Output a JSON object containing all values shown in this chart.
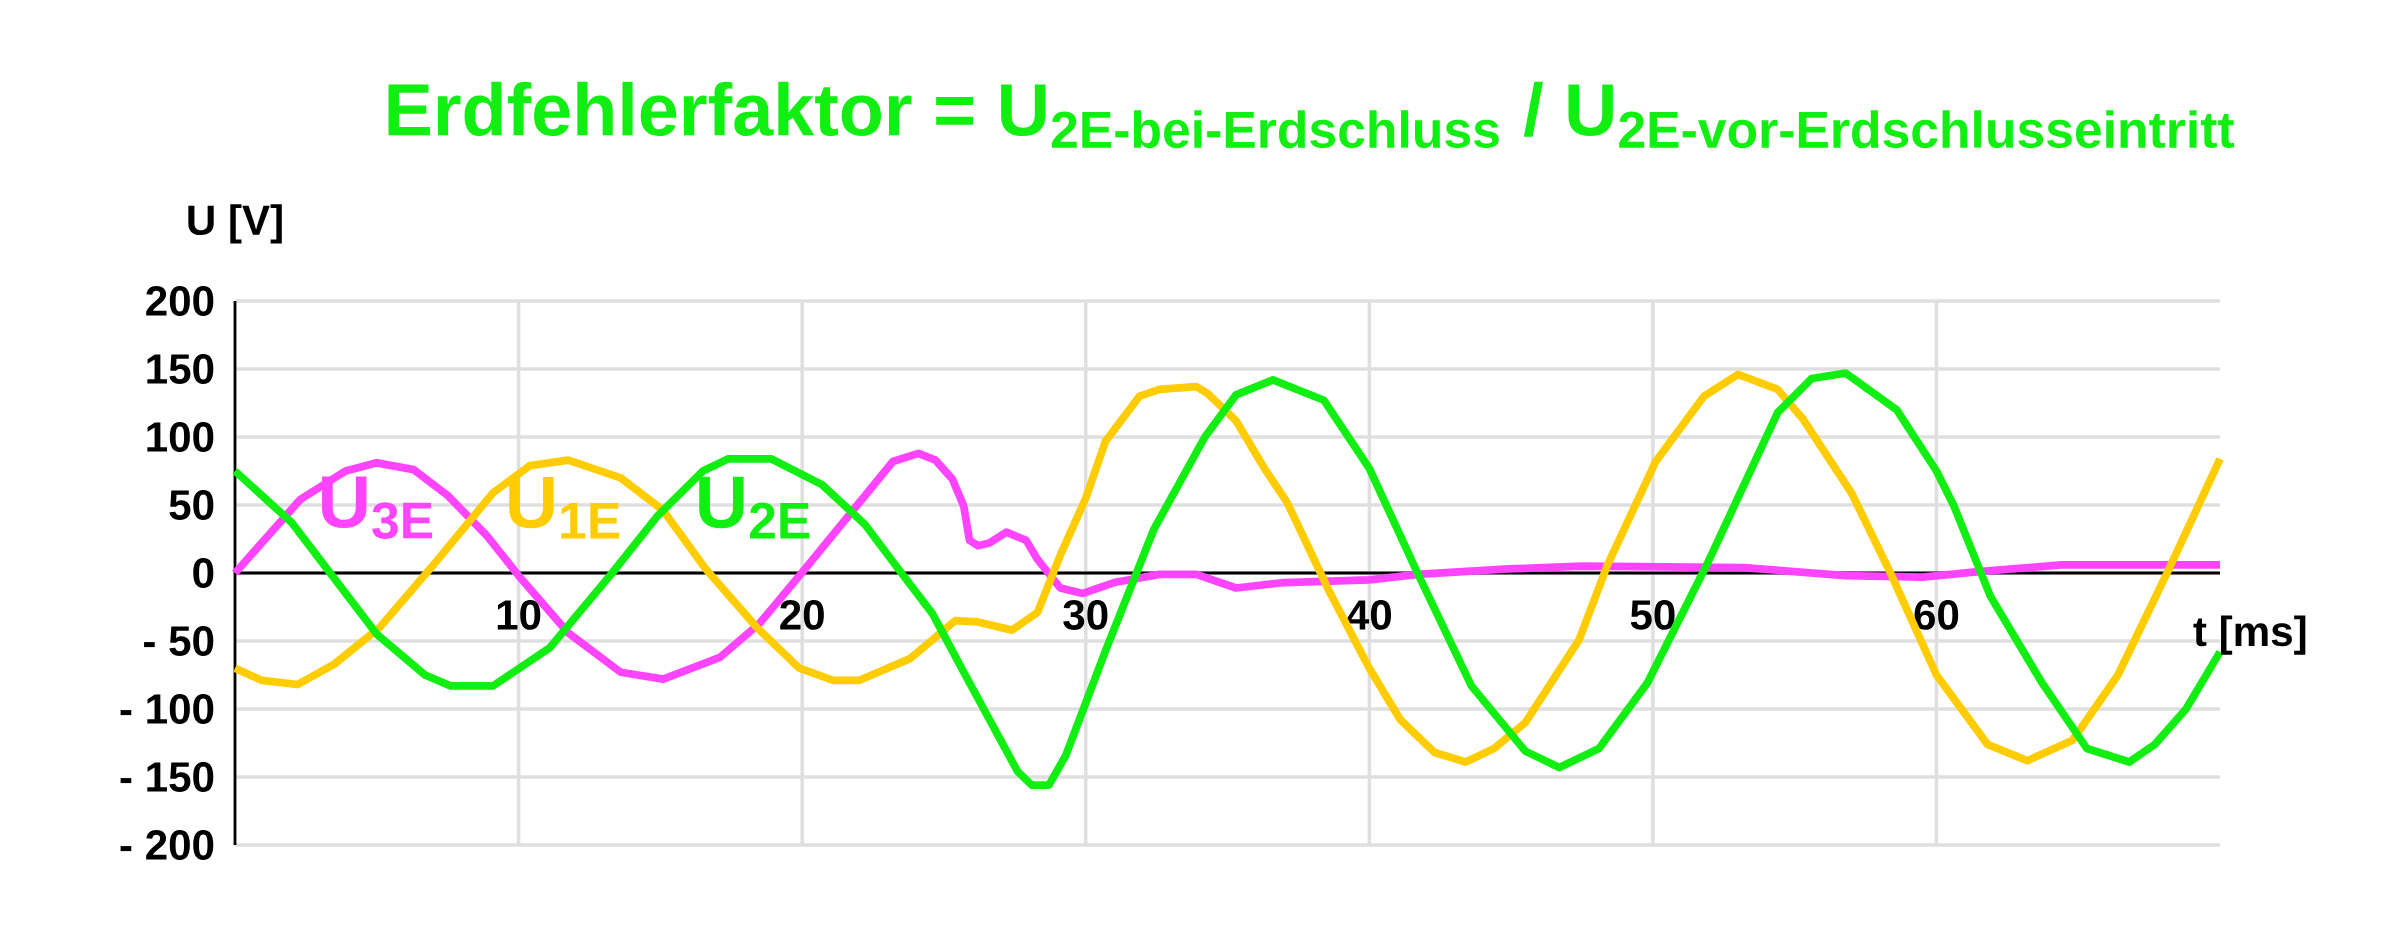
{
  "chart_data": {
    "type": "line",
    "title": "\\text{Erdfehlerfaktor = U}_{\\text{2E-bei-Erdschluss}}\\text{ / U}_{\\text{2E-vor-Erdschlusseintritt}}",
    "xlabel": "t [ms]",
    "ylabel": "U [V]",
    "xlim": [
      0,
      70
    ],
    "ylim": [
      -200,
      200
    ],
    "xticks": [
      10,
      20,
      30,
      40,
      50,
      60
    ],
    "yticks": [
      200,
      150,
      100,
      50,
      0,
      {
        "value": -50,
        "label": "- 50"
      },
      {
        "value": -100,
        "label": "- 100"
      },
      {
        "value": -150,
        "label": "- 150"
      },
      {
        "value": -200,
        "label": "- 200"
      }
    ],
    "grid": true,
    "legend": false,
    "marker": "none",
    "line_style": "solid",
    "series": [
      {
        "name": "U$_{3E}$",
        "color": "#ff44ff",
        "x": [
          0,
          2.3,
          3.9,
          5,
          6.3,
          7.5,
          8.9,
          10,
          11.75,
          13.6,
          15.1,
          17.1,
          18.5,
          20.1,
          22.3,
          23.2,
          24.1,
          24.7,
          25.3,
          25.7,
          25.9,
          26.2,
          26.6,
          27.2,
          27.9,
          28.3,
          29.1,
          29.9,
          31,
          32.6,
          33.9,
          35.3,
          37,
          40,
          41.7,
          44.9,
          47.5,
          53.2,
          56.8,
          59.5,
          61.5,
          64.4,
          70
        ],
        "values": [
          0,
          54,
          75,
          81,
          76,
          57,
          27,
          -2,
          -44,
          -73,
          -78,
          -62,
          -37,
          3,
          59,
          82,
          88,
          83,
          69,
          49,
          24,
          20,
          22,
          30,
          24,
          10,
          -11,
          -15,
          -7,
          -1,
          -1,
          -11,
          -7,
          -5,
          -1,
          3,
          5,
          4,
          -2,
          -3,
          1,
          6,
          6
        ]
      },
      {
        "name": "U$_{1E}$",
        "color": "#ffcc00",
        "x": [
          0,
          0.95,
          2.2,
          3.5,
          5.1,
          7,
          9.1,
          10.4,
          11.75,
          13.6,
          15.1,
          16.6,
          18.4,
          19.9,
          21.1,
          22,
          23.8,
          25.4,
          26.2,
          27.4,
          28.3,
          29.1,
          30,
          30.7,
          31.9,
          32.6,
          33.9,
          34.3,
          35.3,
          36.3,
          37.1,
          38.6,
          40,
          41.1,
          42.3,
          43.4,
          44.4,
          45.5,
          47.4,
          48.4,
          50.1,
          51.8,
          53,
          54.4,
          55.3,
          57,
          58.4,
          60,
          61.8,
          63.2,
          64.8,
          66.4,
          68.2,
          70
        ],
        "values": [
          -70,
          -79,
          -82,
          -67,
          -40,
          6,
          59,
          79,
          83,
          70,
          46,
          3,
          -40,
          -70,
          -79,
          -79,
          -63,
          -35,
          -36,
          -42,
          -29,
          13,
          55,
          97,
          130,
          135,
          137,
          132,
          112,
          77,
          52,
          -14,
          -70,
          -108,
          -132,
          -139,
          -129,
          -110,
          -49,
          6,
          82,
          130,
          146,
          135,
          113,
          59,
          -1,
          -75,
          -126,
          -138,
          -123,
          -75,
          3,
          84
        ]
      },
      {
        "name": "U$_{2E}$",
        "color": "#11ee11",
        "x": [
          0,
          2,
          5,
          6.7,
          7.6,
          9.1,
          11.1,
          13.3,
          14.9,
          16.5,
          17.4,
          18.9,
          20.7,
          22.2,
          23.5,
          24.6,
          25.7,
          27.6,
          28.1,
          28.7,
          29.3,
          30.7,
          32.4,
          34.2,
          35.3,
          36.6,
          38.4,
          40,
          41.7,
          43.6,
          45.5,
          46.7,
          48.1,
          49.8,
          51.9,
          54.4,
          55.6,
          56.8,
          58.6,
          60,
          60.6,
          61.9,
          63.7,
          65.3,
          66.8,
          67.7,
          68.8,
          70
        ],
        "values": [
          75,
          37,
          -45,
          -75,
          -83,
          -83,
          -55,
          0,
          42,
          75,
          84,
          84,
          65,
          36,
          0,
          -30,
          -73,
          -146,
          -156,
          -156,
          -134,
          -57,
          32,
          100,
          131,
          142,
          127,
          77,
          0,
          -83,
          -131,
          -143,
          -129,
          -81,
          6,
          118,
          143,
          147,
          120,
          75,
          50,
          -17,
          -80,
          -129,
          -139,
          -126,
          -100,
          -58
        ]
      }
    ]
  }
}
